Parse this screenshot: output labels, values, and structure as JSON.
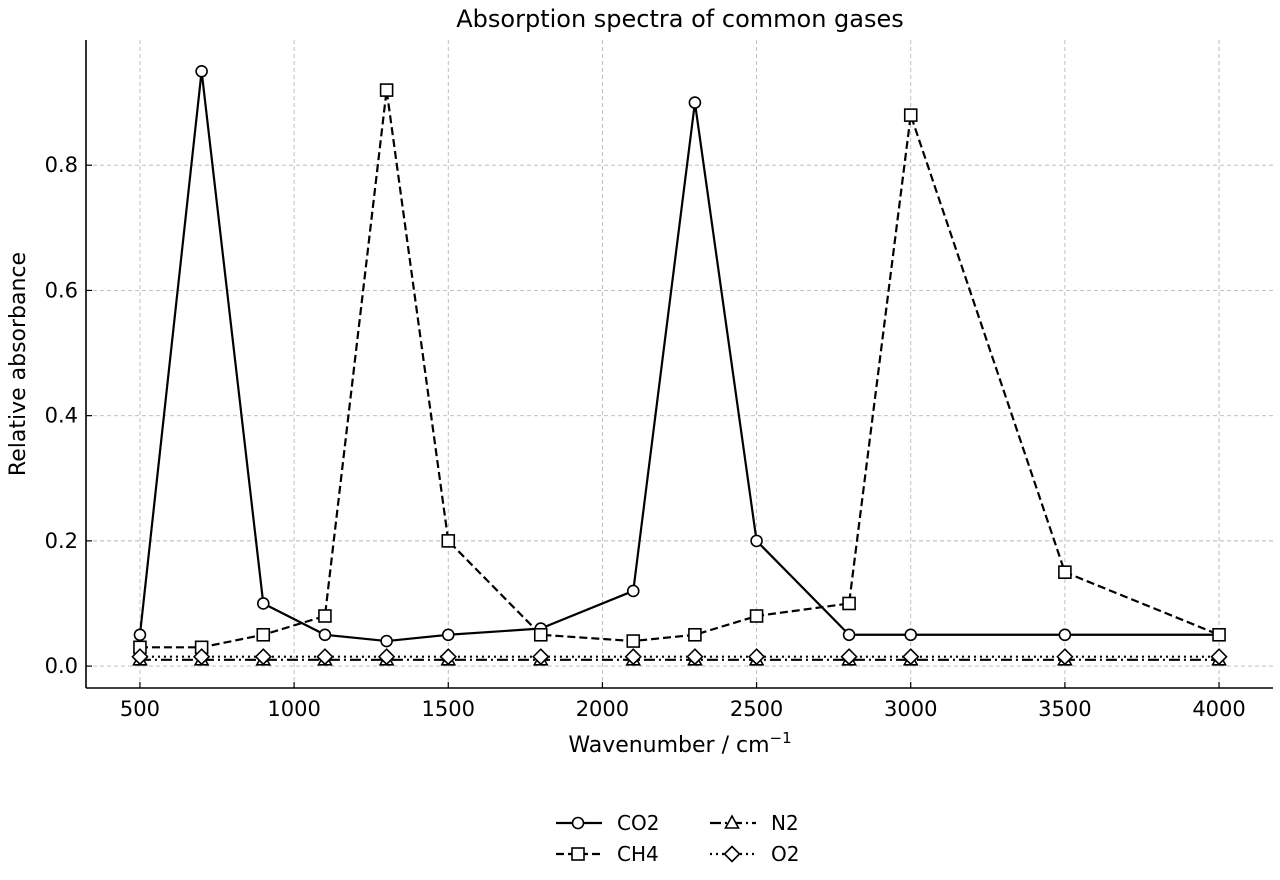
{
  "chart_data": {
    "type": "line",
    "title": "Absorption spectra of common gases",
    "xlabel": "Wavenumber / cm",
    "xlabel_sup": "−1",
    "ylabel": "Relative absorbance",
    "xlim": [
      325,
      4175
    ],
    "ylim": [
      -0.035,
      1.0
    ],
    "xticks": [
      500,
      1000,
      1500,
      2000,
      2500,
      3000,
      3500,
      4000
    ],
    "yticks": [
      0.0,
      0.2,
      0.4,
      0.6,
      0.8
    ],
    "xtick_labels": [
      "500",
      "1000",
      "1500",
      "2000",
      "2500",
      "3000",
      "3500",
      "4000"
    ],
    "ytick_labels": [
      "0.0",
      "0.2",
      "0.4",
      "0.6",
      "0.8"
    ],
    "grid": true,
    "legend_position": "bottom-center",
    "x": [
      500,
      700,
      900,
      1100,
      1300,
      1500,
      1800,
      2100,
      2300,
      2500,
      2800,
      3000,
      3500,
      4000
    ],
    "series": [
      {
        "name": "CO2",
        "marker": "circle",
        "dash": "solid",
        "values": [
          0.05,
          0.95,
          0.1,
          0.05,
          0.04,
          0.05,
          0.06,
          0.12,
          0.9,
          0.2,
          0.05,
          0.05,
          0.05,
          0.05
        ]
      },
      {
        "name": "CH4",
        "marker": "square",
        "dash": "dashed",
        "values": [
          0.03,
          0.03,
          0.05,
          0.08,
          0.92,
          0.2,
          0.05,
          0.04,
          0.05,
          0.08,
          0.1,
          0.88,
          0.15,
          0.05
        ]
      },
      {
        "name": "N2",
        "marker": "triangle",
        "dash": "dashdot",
        "values": [
          0.01,
          0.01,
          0.01,
          0.01,
          0.01,
          0.01,
          0.01,
          0.01,
          0.01,
          0.01,
          0.01,
          0.01,
          0.01,
          0.01
        ]
      },
      {
        "name": "O2",
        "marker": "diamond",
        "dash": "dotted",
        "values": [
          0.015,
          0.015,
          0.015,
          0.015,
          0.015,
          0.015,
          0.015,
          0.015,
          0.015,
          0.015,
          0.015,
          0.015,
          0.015,
          0.015
        ]
      }
    ]
  }
}
